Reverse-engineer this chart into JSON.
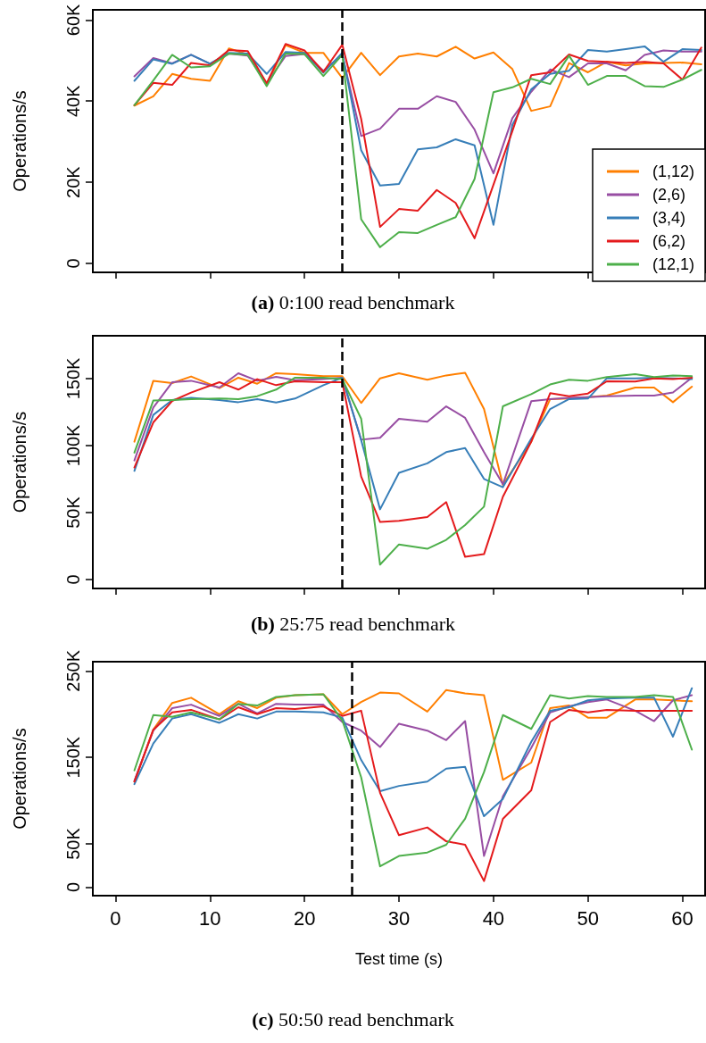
{
  "chart_data": [
    {
      "type": "line",
      "annotations": [
        "(a) 0:100 read benchmark"
      ],
      "ylabel": "Operations/s",
      "x": [
        2,
        4,
        6,
        8,
        10,
        12,
        14,
        16,
        18,
        20,
        22,
        24,
        26,
        28,
        30,
        32,
        34,
        36,
        38,
        40,
        42,
        44,
        46,
        48,
        50,
        52,
        54,
        56,
        58,
        60,
        62
      ],
      "xlim": [
        -2.4,
        62.4
      ],
      "xticks": [
        0,
        10,
        20,
        30,
        40,
        50,
        60
      ],
      "ylim": [
        -2.2,
        62.5
      ],
      "yticks": [
        {
          "value": 0,
          "label": "0"
        },
        {
          "value": 20,
          "label": "20K"
        },
        {
          "value": 40,
          "label": "40K"
        },
        {
          "value": 60,
          "label": "60K"
        }
      ],
      "tick_labels": "y",
      "grid": false,
      "legend": "bottom right",
      "marker": "none",
      "line_style": "solid",
      "ref_lines": [
        {
          "axis": "x",
          "value": 24,
          "color": "#000000",
          "line_style": "dashed"
        }
      ],
      "series": [
        {
          "name": "(1,12)",
          "color": "#ff7f00",
          "values": [
            38.9,
            41.2,
            46.7,
            45.5,
            45.0,
            53.0,
            51.5,
            44.0,
            53.8,
            51.9,
            51.9,
            45.7,
            51.9,
            46.4,
            51.0,
            51.7,
            51.0,
            53.4,
            50.5,
            52.0,
            47.9,
            37.6,
            38.7,
            49.4,
            47.1,
            49.7,
            48.8,
            49.3,
            49.4,
            49.5,
            49.1
          ]
        },
        {
          "name": "(2,6)",
          "color": "#984ea3",
          "values": [
            46.1,
            50.6,
            49.3,
            51.4,
            49.2,
            51.7,
            51.2,
            44.4,
            51.1,
            51.6,
            47.5,
            51.4,
            31.4,
            33.2,
            38.1,
            38.1,
            41.2,
            39.8,
            33.0,
            22.2,
            35.8,
            42.3,
            47.8,
            45.9,
            49.3,
            49.3,
            47.6,
            51.4,
            52.5,
            52.2,
            52.2
          ]
        },
        {
          "name": "(3,4)",
          "color": "#377eb8",
          "values": [
            45.0,
            50.3,
            49.2,
            51.4,
            49.2,
            51.9,
            51.7,
            46.7,
            52.1,
            51.9,
            47.0,
            51.9,
            27.9,
            19.2,
            19.6,
            28.1,
            28.6,
            30.6,
            29.1,
            9.5,
            34.1,
            42.9,
            46.7,
            47.5,
            52.6,
            52.2,
            52.8,
            53.5,
            49.7,
            52.8,
            52.6
          ]
        },
        {
          "name": "(6,2)",
          "color": "#e41a1c",
          "values": [
            39.0,
            44.5,
            44.0,
            49.4,
            48.8,
            52.6,
            52.3,
            44.4,
            54.1,
            52.5,
            47.2,
            53.9,
            35.6,
            9.0,
            13.4,
            13.0,
            18.1,
            14.9,
            6.2,
            19.4,
            32.6,
            46.4,
            47.1,
            51.5,
            49.9,
            49.7,
            49.4,
            49.7,
            49.3,
            45.3,
            53.2
          ]
        },
        {
          "name": "(12,1)",
          "color": "#4daf4a",
          "values": [
            39.0,
            45.1,
            51.4,
            48.3,
            48.6,
            51.7,
            51.4,
            43.7,
            51.7,
            51.6,
            46.2,
            51.4,
            10.9,
            4.0,
            7.7,
            7.5,
            9.5,
            11.4,
            20.8,
            42.2,
            43.4,
            45.5,
            44.2,
            51.2,
            44.0,
            46.2,
            46.2,
            43.7,
            43.5,
            45.3,
            47.7
          ]
        }
      ]
    },
    {
      "type": "line",
      "annotations": [
        "(b) 25:75 read benchmark"
      ],
      "ylabel": "Operations/s",
      "x": [
        2,
        4,
        6,
        8,
        11,
        13,
        15,
        17,
        19,
        22,
        24,
        26,
        28,
        30,
        33,
        35,
        37,
        39,
        41,
        44,
        46,
        48,
        50,
        52,
        55,
        57,
        59,
        61
      ],
      "xlim": [
        -2.4,
        62.4
      ],
      "xticks": [
        0,
        10,
        20,
        30,
        40,
        50,
        60
      ],
      "ylim": [
        -6.7,
        182
      ],
      "yticks": [
        {
          "value": 0,
          "label": "0"
        },
        {
          "value": 50,
          "label": "50K"
        },
        {
          "value": 100,
          "label": "100K"
        },
        {
          "value": 150,
          "label": "150K"
        }
      ],
      "tick_labels": "y",
      "grid": false,
      "legend": false,
      "marker": "none",
      "line_style": "solid",
      "ref_lines": [
        {
          "axis": "x",
          "value": 24,
          "color": "#000000",
          "line_style": "dashed"
        }
      ],
      "series": [
        {
          "color": "#ff7f00",
          "values": [
            102.9,
            148.4,
            146.7,
            151.6,
            142.9,
            150.7,
            146.2,
            154.0,
            153.3,
            151.8,
            151.8,
            131.8,
            150.2,
            154.0,
            149.1,
            152.4,
            154.4,
            127.3,
            70.7,
            102.9,
            134.7,
            135.1,
            136.2,
            137.3,
            143.3,
            143.3,
            132.4,
            144.0
          ]
        },
        {
          "color": "#984ea3",
          "values": [
            88.9,
            128.4,
            147.3,
            148.4,
            143.3,
            154.0,
            148.4,
            151.3,
            148.9,
            149.6,
            150.7,
            104.4,
            105.8,
            120.0,
            117.8,
            129.3,
            120.7,
            95.1,
            71.1,
            133.1,
            134.7,
            135.6,
            136.2,
            136.9,
            137.3,
            137.3,
            139.6,
            150.7
          ]
        },
        {
          "color": "#377eb8",
          "values": [
            81.1,
            122.9,
            134.0,
            135.6,
            134.0,
            132.4,
            134.7,
            132.2,
            135.1,
            145.1,
            150.7,
            104.0,
            52.4,
            79.6,
            86.7,
            95.1,
            98.2,
            75.1,
            68.9,
            105.1,
            127.3,
            134.7,
            135.1,
            150.2,
            150.2,
            150.7,
            150.2,
            149.6
          ]
        },
        {
          "color": "#e41a1c",
          "values": [
            83.6,
            117.3,
            133.3,
            139.6,
            147.3,
            141.8,
            149.6,
            145.1,
            148.0,
            147.3,
            147.3,
            76.9,
            42.9,
            43.8,
            46.7,
            57.8,
            16.9,
            18.9,
            61.8,
            102.9,
            139.1,
            136.9,
            138.9,
            148.0,
            147.8,
            150.2,
            149.6,
            150.7
          ]
        },
        {
          "color": "#4daf4a",
          "values": [
            94.7,
            133.6,
            134.0,
            134.7,
            135.1,
            134.7,
            136.9,
            141.8,
            150.7,
            150.7,
            149.6,
            120.0,
            11.1,
            26.2,
            22.9,
            29.6,
            40.7,
            54.4,
            129.3,
            138.4,
            145.6,
            149.1,
            148.4,
            151.1,
            153.3,
            151.1,
            152.4,
            151.8
          ]
        }
      ]
    },
    {
      "type": "line",
      "annotations": [
        "(c) 50:50 read benchmark"
      ],
      "ylabel": "Operations/s",
      "xlabel": "Test time (s)",
      "x": [
        2,
        4,
        6,
        8,
        11,
        13,
        15,
        17,
        19,
        22,
        24,
        26,
        28,
        30,
        33,
        35,
        37,
        39,
        41,
        44,
        46,
        48,
        50,
        52,
        55,
        57,
        59,
        61
      ],
      "xlim": [
        -2.4,
        62.4
      ],
      "xticks": [
        0,
        10,
        20,
        30,
        40,
        50,
        60
      ],
      "ylim": [
        -9.9,
        260.6
      ],
      "yticks": [
        {
          "value": 0,
          "label": "0"
        },
        {
          "value": 50,
          "label": "50K"
        },
        {
          "value": 150,
          "label": "150K"
        },
        {
          "value": 250,
          "label": "250K"
        }
      ],
      "grid": false,
      "legend": false,
      "marker": "none",
      "line_style": "solid",
      "ref_lines": [
        {
          "axis": "x",
          "value": 25,
          "color": "#000000",
          "line_style": "dashed"
        }
      ],
      "series": [
        {
          "color": "#ff7f00",
          "values": [
            122,
            182,
            213,
            219,
            200,
            215,
            207,
            219,
            222,
            223,
            200,
            214,
            225,
            224,
            203,
            228,
            224,
            222,
            124,
            144,
            207,
            210,
            196,
            196,
            217,
            217,
            216,
            215
          ]
        },
        {
          "color": "#984ea3",
          "values": [
            123,
            181,
            207,
            211,
            198,
            212,
            201,
            212,
            211,
            211,
            191,
            181,
            162,
            189,
            181,
            170,
            192,
            36,
            105,
            161,
            202,
            209,
            214,
            217,
            204,
            192,
            216,
            222
          ]
        },
        {
          "color": "#377eb8",
          "values": [
            119,
            166,
            195,
            200,
            190,
            200,
            195,
            203,
            203,
            202,
            196,
            147,
            111,
            117,
            122,
            137,
            139,
            82,
            102,
            168,
            204,
            208,
            216,
            218,
            219,
            219,
            174,
            230
          ]
        },
        {
          "color": "#e41a1c",
          "values": [
            122,
            182,
            202,
            205,
            194,
            208,
            200,
            207,
            206,
            209,
            198,
            204,
            109,
            60,
            69,
            53,
            49,
            7,
            79,
            112,
            191,
            205,
            202,
            205,
            204,
            204,
            204,
            204
          ]
        },
        {
          "color": "#4daf4a",
          "values": [
            135,
            199,
            197,
            202,
            194,
            212,
            210,
            220,
            222,
            223,
            193,
            127,
            24,
            36,
            40,
            49,
            79,
            133,
            199,
            183,
            222,
            218,
            221,
            220,
            220,
            222,
            220,
            159
          ]
        }
      ]
    }
  ]
}
